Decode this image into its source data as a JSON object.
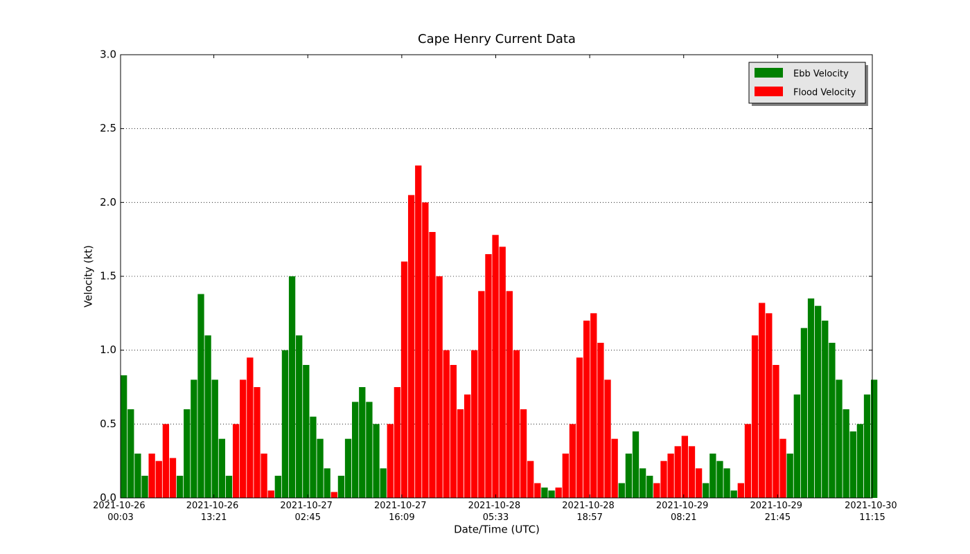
{
  "chart_data": {
    "type": "bar",
    "title": "Cape Henry Current Data",
    "x_label": "Date/Time (UTC)",
    "y_label": "Velocity (kt)",
    "x": [
      "2021-10-26 00:03",
      "2021-10-26 01:03",
      "2021-10-26 02:03",
      "2021-10-26 03:03",
      "2021-10-26 04:03",
      "2021-10-26 05:03",
      "2021-10-26 06:03",
      "2021-10-26 07:03",
      "2021-10-26 08:03",
      "2021-10-26 09:03",
      "2021-10-26 10:03",
      "2021-10-26 11:03",
      "2021-10-26 12:03",
      "2021-10-26 13:03",
      "2021-10-26 14:03",
      "2021-10-26 15:03",
      "2021-10-26 16:03",
      "2021-10-26 17:03",
      "2021-10-26 18:03",
      "2021-10-26 19:03",
      "2021-10-26 20:03",
      "2021-10-26 21:03",
      "2021-10-26 22:03",
      "2021-10-26 23:03",
      "2021-10-27 00:03",
      "2021-10-27 01:03",
      "2021-10-27 02:03",
      "2021-10-27 03:03",
      "2021-10-27 04:03",
      "2021-10-27 05:03",
      "2021-10-27 06:03",
      "2021-10-27 07:03",
      "2021-10-27 08:03",
      "2021-10-27 09:03",
      "2021-10-27 10:03",
      "2021-10-27 11:03",
      "2021-10-27 12:03",
      "2021-10-27 13:03",
      "2021-10-27 14:03",
      "2021-10-27 15:03",
      "2021-10-27 16:03",
      "2021-10-27 17:03",
      "2021-10-27 18:03",
      "2021-10-27 19:03",
      "2021-10-27 20:03",
      "2021-10-27 21:03",
      "2021-10-27 22:03",
      "2021-10-27 23:03",
      "2021-10-28 00:03",
      "2021-10-28 01:03",
      "2021-10-28 02:03",
      "2021-10-28 03:03",
      "2021-10-28 04:03",
      "2021-10-28 05:03",
      "2021-10-28 06:03",
      "2021-10-28 07:03",
      "2021-10-28 08:03",
      "2021-10-28 09:03",
      "2021-10-28 10:03",
      "2021-10-28 11:03",
      "2021-10-28 12:03",
      "2021-10-28 13:03",
      "2021-10-28 14:03",
      "2021-10-28 15:03",
      "2021-10-28 16:03",
      "2021-10-28 17:03",
      "2021-10-28 18:03",
      "2021-10-28 19:03",
      "2021-10-28 20:03",
      "2021-10-28 21:03",
      "2021-10-28 22:03",
      "2021-10-28 23:03",
      "2021-10-29 00:03",
      "2021-10-29 01:03",
      "2021-10-29 02:03",
      "2021-10-29 03:03",
      "2021-10-29 04:03",
      "2021-10-29 05:03",
      "2021-10-29 06:03",
      "2021-10-29 07:03",
      "2021-10-29 08:03",
      "2021-10-29 09:03",
      "2021-10-29 10:03",
      "2021-10-29 11:03",
      "2021-10-29 12:03",
      "2021-10-29 13:03",
      "2021-10-29 14:03",
      "2021-10-29 15:03",
      "2021-10-29 16:03",
      "2021-10-29 17:03",
      "2021-10-29 18:03",
      "2021-10-29 19:03",
      "2021-10-29 20:03",
      "2021-10-29 21:03",
      "2021-10-29 22:03",
      "2021-10-29 23:03",
      "2021-10-30 00:03",
      "2021-10-30 01:03",
      "2021-10-30 02:03",
      "2021-10-30 03:03",
      "2021-10-30 04:03",
      "2021-10-30 05:03",
      "2021-10-30 06:03",
      "2021-10-30 07:03",
      "2021-10-30 08:03",
      "2021-10-30 09:03",
      "2021-10-30 10:03",
      "2021-10-30 11:03"
    ],
    "series": [
      {
        "name": "Ebb Velocity",
        "color": "#008000",
        "values": [
          0.83,
          0.6,
          0.3,
          0.15,
          null,
          null,
          null,
          null,
          0.15,
          0.6,
          0.8,
          1.38,
          1.1,
          0.8,
          0.4,
          0.15,
          null,
          null,
          null,
          null,
          null,
          null,
          0.15,
          1.0,
          1.5,
          1.1,
          0.9,
          0.55,
          0.4,
          0.2,
          null,
          0.15,
          0.4,
          0.65,
          0.75,
          0.65,
          0.5,
          0.2,
          null,
          null,
          null,
          null,
          null,
          null,
          null,
          null,
          null,
          null,
          null,
          null,
          null,
          null,
          null,
          null,
          null,
          null,
          null,
          null,
          null,
          null,
          0.07,
          0.05,
          null,
          null,
          null,
          null,
          null,
          null,
          null,
          null,
          null,
          0.1,
          0.3,
          0.45,
          0.2,
          0.15,
          null,
          null,
          null,
          null,
          null,
          null,
          null,
          0.1,
          0.3,
          0.25,
          0.2,
          0.05,
          null,
          null,
          null,
          null,
          null,
          null,
          null,
          0.3,
          0.7,
          1.15,
          1.35,
          1.3,
          1.2,
          1.05,
          0.8,
          0.6,
          0.45,
          0.5,
          0.7,
          0.8
        ]
      },
      {
        "name": "Flood Velocity",
        "color": "#ff0000",
        "values": [
          null,
          null,
          null,
          null,
          0.3,
          0.25,
          0.5,
          0.27,
          null,
          null,
          null,
          null,
          null,
          null,
          null,
          null,
          0.5,
          0.8,
          0.95,
          0.75,
          0.3,
          0.05,
          null,
          null,
          null,
          null,
          null,
          null,
          null,
          null,
          0.04,
          null,
          null,
          null,
          null,
          null,
          null,
          null,
          0.5,
          0.75,
          1.6,
          2.05,
          2.25,
          2.0,
          1.8,
          1.5,
          1.0,
          0.9,
          0.6,
          0.7,
          1.0,
          1.4,
          1.65,
          1.78,
          1.7,
          1.4,
          1.0,
          0.6,
          0.25,
          0.1,
          null,
          null,
          0.07,
          0.3,
          0.5,
          0.95,
          1.2,
          1.25,
          1.05,
          0.8,
          0.4,
          null,
          null,
          null,
          null,
          null,
          0.1,
          0.25,
          0.3,
          0.35,
          0.42,
          0.35,
          0.2,
          null,
          null,
          null,
          null,
          null,
          0.1,
          0.5,
          1.1,
          1.32,
          1.25,
          0.9,
          0.4,
          null,
          null,
          null,
          null,
          null,
          null,
          null,
          null,
          null,
          null,
          null,
          null,
          null
        ]
      }
    ],
    "xlim": [
      "2021-10-26 00:03",
      "2021-10-30 11:15"
    ],
    "xticks": [
      "2021-10-26 00:03",
      "2021-10-26 13:21",
      "2021-10-27 02:45",
      "2021-10-27 16:09",
      "2021-10-28 05:33",
      "2021-10-28 18:57",
      "2021-10-29 08:21",
      "2021-10-29 21:45",
      "2021-10-30 11:15"
    ],
    "ylim": [
      0,
      3
    ],
    "yticks": [
      {
        "value": 0,
        "label": "0.0"
      },
      0.5,
      {
        "value": 1,
        "label": "1.0"
      },
      1.5,
      {
        "value": 2,
        "label": "2.0"
      },
      2.5,
      {
        "value": 3,
        "label": "3.0"
      }
    ],
    "grid": true,
    "legend": "upper right"
  }
}
